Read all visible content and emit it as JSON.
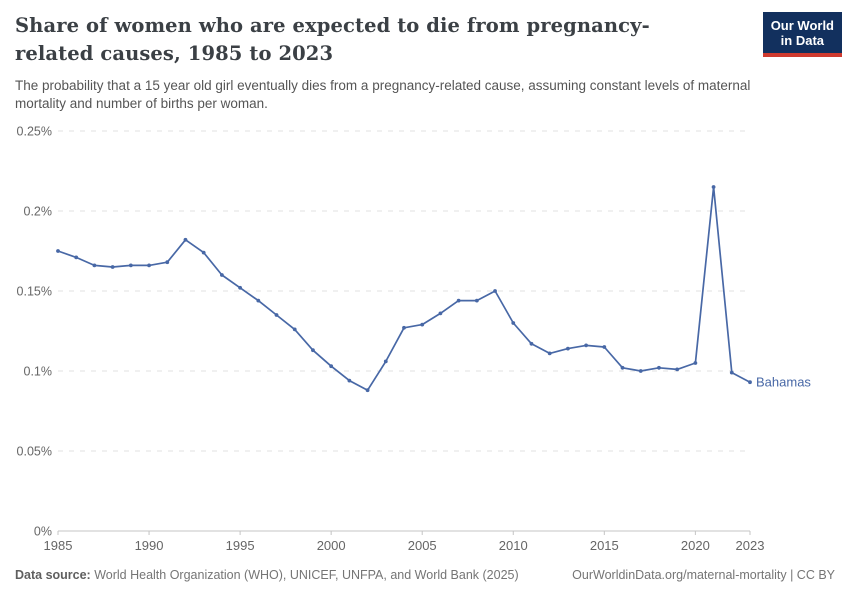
{
  "header": {
    "title": "Share of women who are expected to die from pregnancy-related causes, 1985 to 2023",
    "subtitle": "The probability that a 15 year old girl eventually dies from a pregnancy-related cause, assuming constant levels of maternal mortality and number of births per woman.",
    "logo": {
      "line1": "Our World",
      "line2": "in Data",
      "bg_color": "#12305e",
      "accent_color": "#cf3a2f"
    }
  },
  "chart_data": {
    "type": "line",
    "title": "Share of women who are expected to die from pregnancy-related causes, 1985 to 2023",
    "xlabel": "",
    "ylabel": "",
    "unit": "%",
    "xlim": [
      1985,
      2023
    ],
    "ylim": [
      0,
      0.25
    ],
    "grid": "horizontal-dashed",
    "legend": "end-of-line-label",
    "x": [
      1985,
      1986,
      1987,
      1988,
      1989,
      1990,
      1991,
      1992,
      1993,
      1994,
      1995,
      1996,
      1997,
      1998,
      1999,
      2000,
      2001,
      2002,
      2003,
      2004,
      2005,
      2006,
      2007,
      2008,
      2009,
      2010,
      2011,
      2012,
      2013,
      2014,
      2015,
      2016,
      2017,
      2018,
      2019,
      2020,
      2021,
      2022,
      2023
    ],
    "series": [
      {
        "name": "Bahamas",
        "color": "#4868a6",
        "values": [
          0.175,
          0.171,
          0.166,
          0.165,
          0.166,
          0.166,
          0.168,
          0.182,
          0.174,
          0.16,
          0.152,
          0.144,
          0.135,
          0.126,
          0.113,
          0.103,
          0.094,
          0.088,
          0.106,
          0.127,
          0.129,
          0.136,
          0.144,
          0.144,
          0.15,
          0.13,
          0.117,
          0.111,
          0.114,
          0.116,
          0.115,
          0.102,
          0.1,
          0.102,
          0.101,
          0.105,
          0.215,
          0.099,
          0.093
        ]
      }
    ],
    "x_ticks": [
      1985,
      1990,
      1995,
      2000,
      2005,
      2010,
      2015,
      2020,
      2023
    ],
    "y_ticks": [
      {
        "value": 0,
        "label": "0%"
      },
      {
        "value": 0.05,
        "label": "0.05%"
      },
      {
        "value": 0.1,
        "label": "0.1%"
      },
      {
        "value": 0.15,
        "label": "0.15%"
      },
      {
        "value": 0.2,
        "label": "0.2%"
      },
      {
        "value": 0.25,
        "label": "0.25%"
      }
    ],
    "colors": {
      "grid": "#e2e2e2",
      "axis": "#c4c4c4",
      "tick_label": "#666666"
    }
  },
  "footer": {
    "datasource_label": "Data source:",
    "datasource_text": " World Health Organization (WHO), UNICEF, UNFPA, and World Bank (2025)",
    "attribution": "OurWorldinData.org/maternal-mortality | CC BY"
  }
}
